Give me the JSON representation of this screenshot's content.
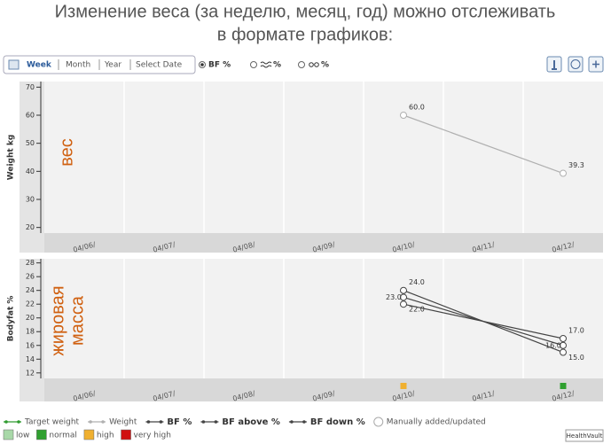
{
  "header": {
    "lines": [
      "Изменение веса (за неделю, месяц, год) можно отслеживать",
      "в формате графиков:"
    ]
  },
  "toolbar": {
    "periods": [
      "Week",
      "Month",
      "Year",
      "Select Date"
    ],
    "modes": [
      "BF %",
      "%",
      "%"
    ]
  },
  "chart_data": [
    {
      "type": "line",
      "y_label": "Weight kg",
      "annotation": [
        "вес"
      ],
      "categories": [
        "04/06/",
        "04/07/",
        "04/08/",
        "04/09/",
        "04/10/",
        "04/11/",
        "04/12/"
      ],
      "ylim": [
        18,
        72
      ],
      "yticks": [
        20,
        30,
        40,
        50,
        60,
        70
      ],
      "series": [
        {
          "name": "Weight",
          "color": "#b0b0b0",
          "x": [
            "04/10/",
            "04/12/"
          ],
          "values": [
            60,
            39.3
          ],
          "value_labels": [
            "60.0",
            "39.3"
          ]
        }
      ]
    },
    {
      "type": "line",
      "y_label": "Bodyfat %",
      "annotation": [
        "жировая",
        "масса"
      ],
      "categories": [
        "04/06/",
        "04/07/",
        "04/08/",
        "04/09/",
        "04/10/",
        "04/11/",
        "04/12/"
      ],
      "ylim": [
        11.2,
        28.6
      ],
      "yticks": [
        12,
        14,
        16,
        18,
        20,
        22,
        24,
        26,
        28
      ],
      "series": [
        {
          "name": "BF above %",
          "color": "#444444",
          "x": [
            "04/10/",
            "04/12/"
          ],
          "values": [
            24,
            15
          ],
          "value_labels": [
            "24.0",
            "15.0"
          ]
        },
        {
          "name": "BF %",
          "color": "#444444",
          "x": [
            "04/10/",
            "04/12/"
          ],
          "values": [
            23,
            16
          ],
          "value_labels": [
            "23.0",
            "16.0"
          ]
        },
        {
          "name": "BF down %",
          "color": "#444444",
          "x": [
            "04/10/",
            "04/12/"
          ],
          "values": [
            22,
            17
          ],
          "value_labels": [
            "22.0",
            "17.0"
          ]
        }
      ],
      "status_markers": [
        {
          "x": "04/10/",
          "color": "#f0b030"
        },
        {
          "x": "04/12/",
          "color": "#30a030"
        }
      ]
    }
  ],
  "legend": {
    "target": "Target weight",
    "target_color": "#2e9a2e",
    "manual": "Manually added/updated",
    "levels": [
      {
        "label": "low",
        "color": "#a8d8a8"
      },
      {
        "label": "normal",
        "color": "#30a030"
      },
      {
        "label": "high",
        "color": "#f0b030"
      },
      {
        "label": "very high",
        "color": "#d01010"
      }
    ]
  },
  "logo": "HealthVault"
}
